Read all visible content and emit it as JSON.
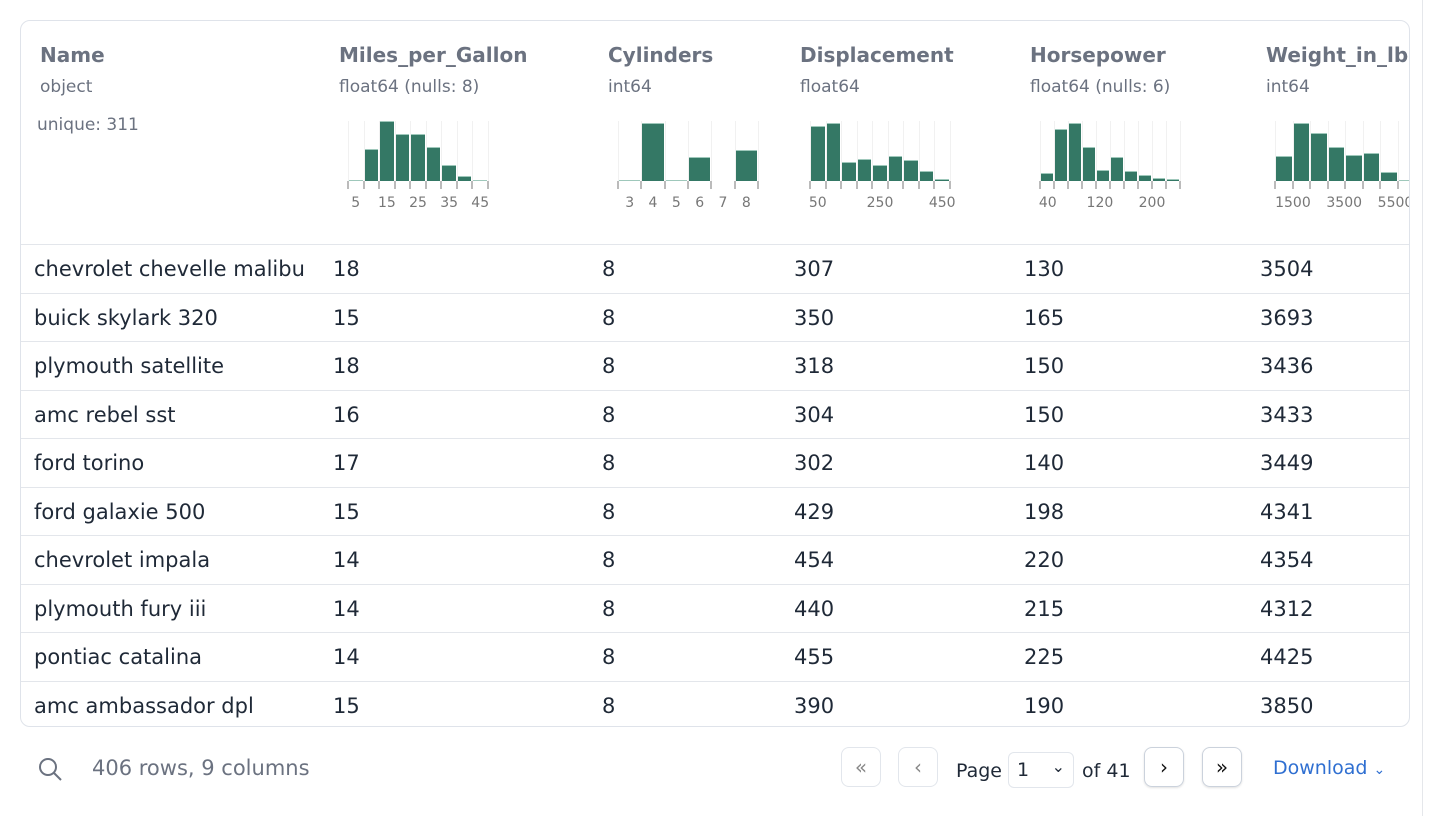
{
  "columns": [
    {
      "name": "Name",
      "type": "object",
      "unique": "unique: 311"
    },
    {
      "name": "Miles_per_Gallon",
      "type": "float64 (nulls: 8)"
    },
    {
      "name": "Cylinders",
      "type": "int64"
    },
    {
      "name": "Displacement",
      "type": "float64"
    },
    {
      "name": "Horsepower",
      "type": "float64 (nulls: 6)"
    },
    {
      "name": "Weight_in_lbs",
      "type": "int64"
    }
  ],
  "chart_data": [
    {
      "type": "bar",
      "column": "Miles_per_Gallon",
      "xlim": [
        2.5,
        47.5
      ],
      "ticks": [
        "5",
        "15",
        "25",
        "35",
        "45"
      ],
      "tick_values": [
        5,
        15,
        25,
        35,
        45
      ],
      "relative_counts": [
        0.01,
        0.53,
        1.0,
        0.79,
        0.78,
        0.57,
        0.27,
        0.08,
        0.01
      ]
    },
    {
      "type": "bar",
      "column": "Cylinders",
      "xlim": [
        2.5,
        8.5
      ],
      "ticks": [
        "3",
        "4",
        "5",
        "6",
        "7",
        "8"
      ],
      "tick_values": [
        3,
        4,
        5,
        6,
        7,
        8
      ],
      "relative_counts": [
        0.01,
        0.96,
        0.01,
        0.4,
        0,
        0.52
      ]
    },
    {
      "type": "bar",
      "column": "Displacement",
      "xlim": [
        25,
        475
      ],
      "ticks": [
        "50",
        "250",
        "450"
      ],
      "tick_values": [
        50,
        250,
        450
      ],
      "relative_counts": [
        0.92,
        0.97,
        0.31,
        0.37,
        0.27,
        0.41,
        0.35,
        0.17,
        0.03
      ]
    },
    {
      "type": "bar",
      "column": "Horsepower",
      "xlim": [
        28,
        243
      ],
      "ticks": [
        "40",
        "120",
        "200"
      ],
      "tick_values": [
        40,
        120,
        200
      ],
      "relative_counts": [
        0.14,
        0.86,
        0.97,
        0.56,
        0.19,
        0.4,
        0.17,
        0.1,
        0.05,
        0.04
      ]
    },
    {
      "type": "bar",
      "column": "Weight_in_lbs",
      "xlim": [
        800,
        6260
      ],
      "ticks": [
        "1500",
        "3500",
        "5500"
      ],
      "tick_values": [
        1500,
        3500,
        5500
      ],
      "relative_counts": [
        0.41,
        0.97,
        0.8,
        0.57,
        0.44,
        0.47,
        0.15,
        0.01
      ]
    }
  ],
  "rows": [
    [
      "chevrolet chevelle malibu",
      "18",
      "8",
      "307",
      "130",
      "3504"
    ],
    [
      "buick skylark 320",
      "15",
      "8",
      "350",
      "165",
      "3693"
    ],
    [
      "plymouth satellite",
      "18",
      "8",
      "318",
      "150",
      "3436"
    ],
    [
      "amc rebel sst",
      "16",
      "8",
      "304",
      "150",
      "3433"
    ],
    [
      "ford torino",
      "17",
      "8",
      "302",
      "140",
      "3449"
    ],
    [
      "ford galaxie 500",
      "15",
      "8",
      "429",
      "198",
      "4341"
    ],
    [
      "chevrolet impala",
      "14",
      "8",
      "454",
      "220",
      "4354"
    ],
    [
      "plymouth fury iii",
      "14",
      "8",
      "440",
      "215",
      "4312"
    ],
    [
      "pontiac catalina",
      "14",
      "8",
      "455",
      "225",
      "4425"
    ],
    [
      "amc ambassador dpl",
      "15",
      "8",
      "390",
      "190",
      "3850"
    ]
  ],
  "footer": {
    "summary": "406 rows, 9 columns",
    "page_label": "Page",
    "page": "1",
    "of_label": "of 41",
    "download": "Download",
    "search_icon": "search-icon"
  },
  "colors": {
    "bar": "#347865",
    "link": "#2f6fd1"
  }
}
